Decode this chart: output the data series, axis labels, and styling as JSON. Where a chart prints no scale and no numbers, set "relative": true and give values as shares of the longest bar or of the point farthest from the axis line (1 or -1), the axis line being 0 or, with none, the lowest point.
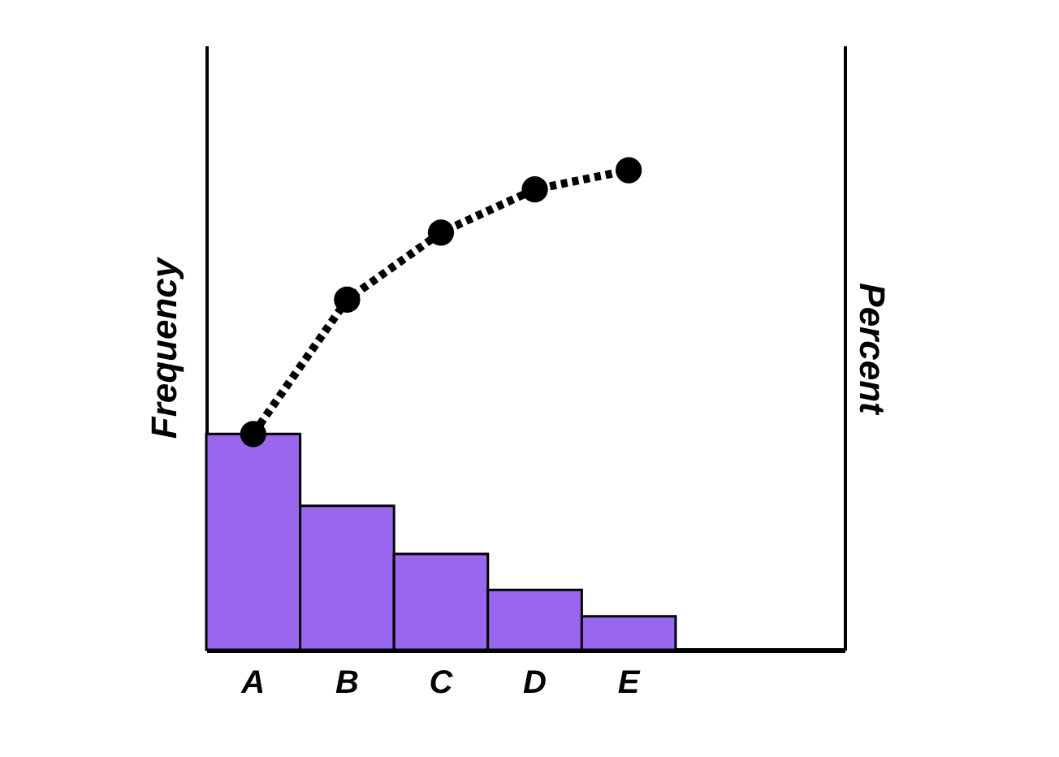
{
  "chart_data": {
    "type": "bar",
    "relative": true,
    "categories": [
      "A",
      "B",
      "C",
      "D",
      "E"
    ],
    "ylabel": "Frequency",
    "y2label": "Percent",
    "tick_labels": "x",
    "grid": false,
    "marker": "circle",
    "line_style": "dotted",
    "series": [
      {
        "color": "#9966ee",
        "values": [
          0.45,
          0.3,
          0.2,
          0.125,
          0.07
        ]
      },
      {
        "type": "line",
        "color": "#000000",
        "values": [
          0.45,
          0.73,
          0.87,
          0.96,
          1.0
        ]
      }
    ]
  }
}
